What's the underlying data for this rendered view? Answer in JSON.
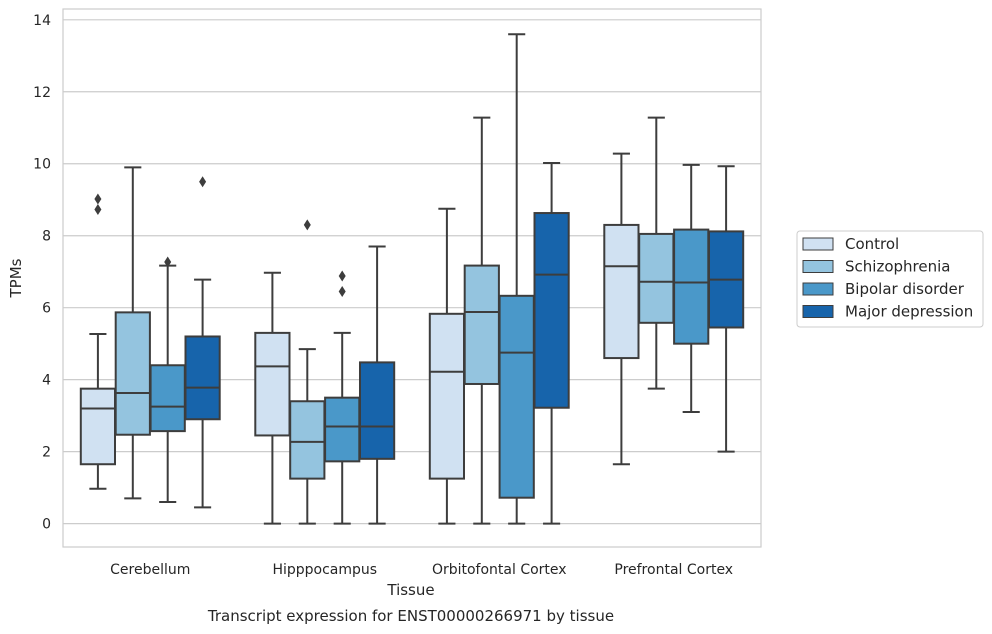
{
  "chart_data": {
    "type": "box",
    "title": "Transcript expression for ENST00000266971 by tissue",
    "xlabel": "Tissue",
    "ylabel": "TPMs",
    "ylim": [
      -0.65,
      14.3
    ],
    "yticks": [
      0,
      2,
      4,
      6,
      8,
      10,
      12,
      14
    ],
    "grid": true,
    "legend_position": "right",
    "categories": [
      "Cerebellum",
      "Hipppocampus",
      "Orbitofontal Cortex",
      "Prefrontal Cortex"
    ],
    "series": [
      {
        "name": "Control",
        "color": "#d0e1f2",
        "boxes": [
          {
            "whislo": 0.97,
            "q1": 1.65,
            "med": 3.2,
            "q3": 3.75,
            "whishi": 5.27,
            "fliers": [
              9.02,
              8.73
            ]
          },
          {
            "whislo": 0.0,
            "q1": 2.45,
            "med": 4.37,
            "q3": 5.3,
            "whishi": 6.97,
            "fliers": []
          },
          {
            "whislo": 0.0,
            "q1": 1.25,
            "med": 4.22,
            "q3": 5.83,
            "whishi": 8.75,
            "fliers": []
          },
          {
            "whislo": 1.65,
            "q1": 4.6,
            "med": 7.15,
            "q3": 8.3,
            "whishi": 10.28,
            "fliers": []
          }
        ]
      },
      {
        "name": "Schizophrenia",
        "color": "#94c4df",
        "boxes": [
          {
            "whislo": 0.7,
            "q1": 2.47,
            "med": 3.63,
            "q3": 5.87,
            "whishi": 9.9,
            "fliers": []
          },
          {
            "whislo": 0.0,
            "q1": 1.25,
            "med": 2.27,
            "q3": 3.4,
            "whishi": 4.85,
            "fliers": [
              8.3
            ]
          },
          {
            "whislo": 0.0,
            "q1": 3.88,
            "med": 5.88,
            "q3": 7.17,
            "whishi": 11.28,
            "fliers": []
          },
          {
            "whislo": 3.75,
            "q1": 5.58,
            "med": 6.72,
            "q3": 8.05,
            "whishi": 11.28,
            "fliers": []
          }
        ]
      },
      {
        "name": "Bipolar disorder",
        "color": "#4a98c9",
        "boxes": [
          {
            "whislo": 0.6,
            "q1": 2.57,
            "med": 3.25,
            "q3": 4.4,
            "whishi": 7.17,
            "fliers": [
              7.27
            ]
          },
          {
            "whislo": 0.0,
            "q1": 1.73,
            "med": 2.7,
            "q3": 3.5,
            "whishi": 5.3,
            "fliers": [
              6.88,
              6.45
            ]
          },
          {
            "whislo": 0.0,
            "q1": 0.72,
            "med": 4.75,
            "q3": 6.33,
            "whishi": 13.6,
            "fliers": []
          },
          {
            "whislo": 3.1,
            "q1": 5.0,
            "med": 6.7,
            "q3": 8.17,
            "whishi": 9.97,
            "fliers": []
          }
        ]
      },
      {
        "name": "Major depression",
        "color": "#1764ab",
        "boxes": [
          {
            "whislo": 0.45,
            "q1": 2.9,
            "med": 3.78,
            "q3": 5.2,
            "whishi": 6.78,
            "fliers": [
              9.5
            ]
          },
          {
            "whislo": 0.0,
            "q1": 1.8,
            "med": 2.7,
            "q3": 4.48,
            "whishi": 7.7,
            "fliers": []
          },
          {
            "whislo": 0.0,
            "q1": 3.22,
            "med": 6.92,
            "q3": 8.63,
            "whishi": 10.02,
            "fliers": []
          },
          {
            "whislo": 2.0,
            "q1": 5.45,
            "med": 6.78,
            "q3": 8.12,
            "whishi": 9.93,
            "fliers": []
          }
        ]
      }
    ]
  }
}
